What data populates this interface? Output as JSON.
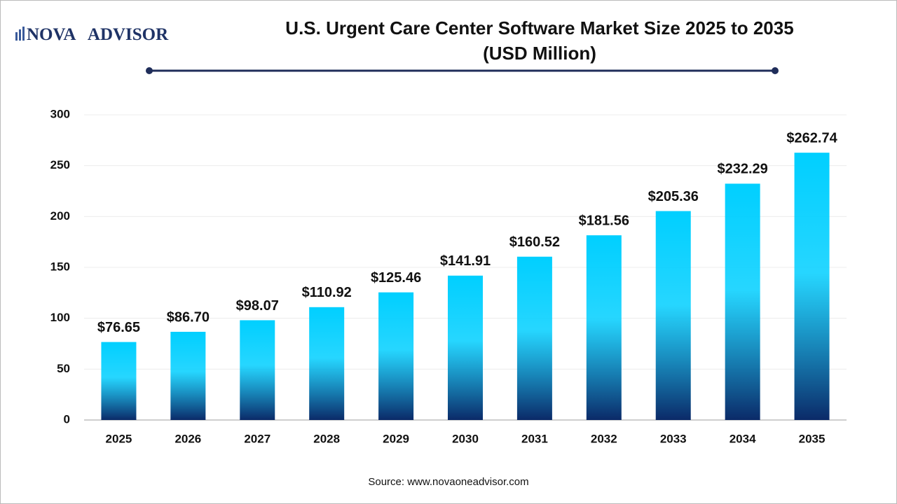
{
  "logo": {
    "left": "NOVA",
    "mark": "1",
    "right": "ADVISOR"
  },
  "source": "Source: www.novaoneadvisor.com",
  "chart_data": {
    "type": "bar",
    "title": "U.S. Urgent Care Center Software Market Size 2025 to 2035",
    "subtitle": "(USD Million)",
    "categories": [
      "2025",
      "2026",
      "2027",
      "2028",
      "2029",
      "2030",
      "2031",
      "2032",
      "2033",
      "2034",
      "2035"
    ],
    "values": [
      76.65,
      86.7,
      98.07,
      110.92,
      125.46,
      141.91,
      160.52,
      181.56,
      205.36,
      232.29,
      262.74
    ],
    "value_labels": [
      "$76.65",
      "$86.70",
      "$98.07",
      "$110.92",
      "$125.46",
      "$141.91",
      "$160.52",
      "$181.56",
      "$205.36",
      "$232.29",
      "$262.74"
    ],
    "color": [
      "#00cfff",
      "#0b2a68"
    ],
    "ylim": [
      0,
      300
    ],
    "yticks": [
      0,
      50,
      100,
      150,
      200,
      250,
      300
    ],
    "grid": true
  }
}
